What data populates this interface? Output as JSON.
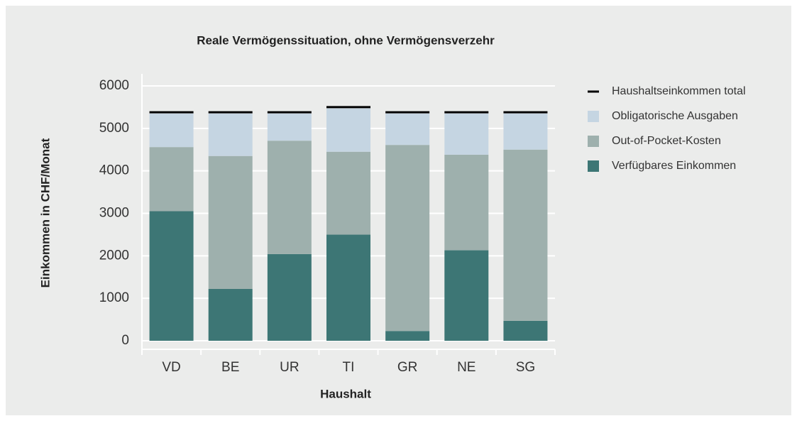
{
  "chart_data": {
    "type": "stacked_bar",
    "title": "Reale Vermögenssituation, ohne Vermögensverzehr",
    "x_label": "Haushalt",
    "y_label": "Einkommen in CHF/Monat",
    "categories": [
      "VD",
      "BE",
      "UR",
      "TI",
      "GR",
      "NE",
      "SG"
    ],
    "series": [
      {
        "name": "Verfügbares Einkommen",
        "color": "#3d7675",
        "values": [
          3050,
          1220,
          2040,
          2500,
          230,
          2130,
          470
        ]
      },
      {
        "name": "Out-of-Pocket-Kosten",
        "color": "#9eb0ad",
        "values": [
          1510,
          3130,
          2670,
          1950,
          4380,
          2250,
          4030
        ]
      },
      {
        "name": "Obligatorische Ausgaben",
        "color": "#c5d5e2",
        "values": [
          790,
          1000,
          640,
          1020,
          740,
          970,
          850
        ]
      }
    ],
    "totals": {
      "name": "Haushaltseinkommen total",
      "color": "#000000",
      "values": [
        5380,
        5380,
        5380,
        5500,
        5380,
        5380,
        5380
      ]
    },
    "ylim": [
      0,
      6000
    ],
    "yticks": [
      0,
      1000,
      2000,
      3000,
      4000,
      5000,
      6000
    ],
    "grid": true
  }
}
